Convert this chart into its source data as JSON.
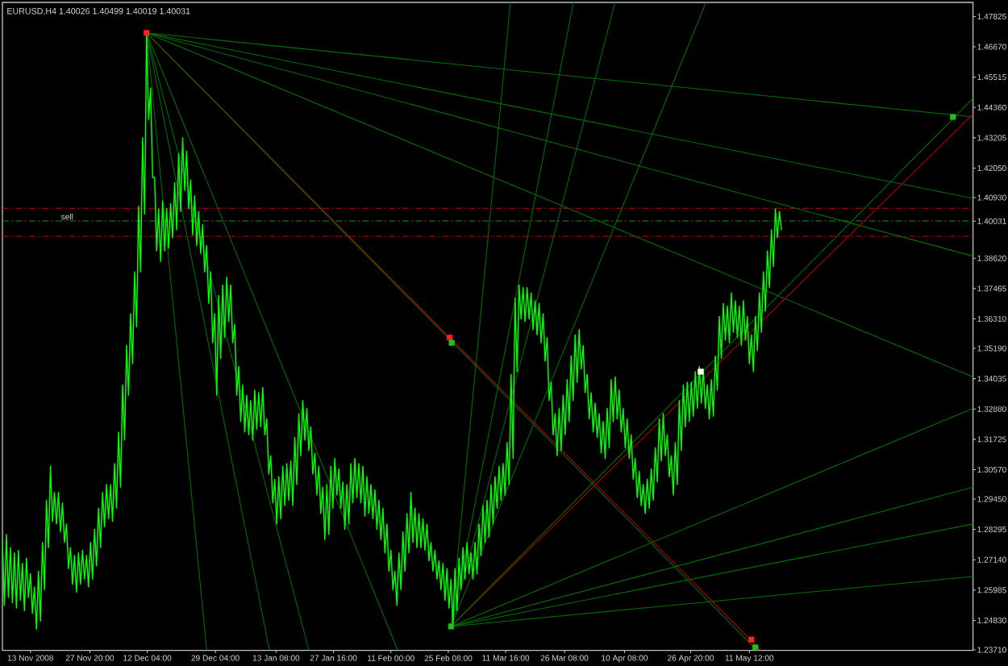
{
  "chart_data": {
    "type": "line",
    "title": "EURUSD,H4  1.40026 1.40499 1.40019 1.40031",
    "xlim": [
      "2008-11-06T00:00",
      "2009-07-06T08:00"
    ],
    "xticks": [
      {
        "value": "2008-11-13T00:00",
        "label": "13 Nov 2008"
      },
      {
        "value": "2008-11-27T20:00",
        "label": "27 Nov 20:00"
      },
      {
        "value": "2008-12-12T04:00",
        "label": "12 Dec 04:00"
      },
      {
        "value": "2008-12-29T04:00",
        "label": "29 Dec 04:00"
      },
      {
        "value": "2009-01-13T08:00",
        "label": "13 Jan 08:00"
      },
      {
        "value": "2009-01-27T16:00",
        "label": "27 Jan 16:00"
      },
      {
        "value": "2009-02-11T00:00",
        "label": "11 Feb 00:00"
      },
      {
        "value": "2009-02-25T08:00",
        "label": "25 Feb 08:00"
      },
      {
        "value": "2009-03-11T16:00",
        "label": "11 Mar 16:00"
      },
      {
        "value": "2009-03-26T08:00",
        "label": "26 Mar 08:00"
      },
      {
        "value": "2009-04-10T08:00",
        "label": "10 Apr 08:00"
      },
      {
        "value": "2009-04-26T20:00",
        "label": "26 Apr 20:00"
      },
      {
        "value": "2009-05-11T12:00",
        "label": "11 May 12:00"
      }
    ],
    "ylim": [
      1.2369,
      1.4836
    ],
    "yticks": [
      1.47825,
      {
        "value": 1.4667,
        "label": "1.46670"
      },
      1.45515,
      {
        "value": 1.4436,
        "label": "1.44360"
      },
      1.43205,
      {
        "value": 1.4205,
        "label": "1.42050"
      },
      {
        "value": 1.4093,
        "label": "1.40930"
      },
      1.40031,
      {
        "value": 1.3862,
        "label": "1.38620"
      },
      1.37465,
      {
        "value": 1.3631,
        "label": "1.36310"
      },
      {
        "value": 1.3519,
        "label": "1.35190"
      },
      1.34035,
      {
        "value": 1.3288,
        "label": "1.32880"
      },
      1.31725,
      {
        "value": 1.3057,
        "label": "1.30570"
      },
      {
        "value": 1.2945,
        "label": "1.29450"
      },
      1.28295,
      {
        "value": 1.2714,
        "label": "1.27140"
      },
      1.25985,
      {
        "value": 1.2483,
        "label": "1.24830"
      },
      {
        "value": 1.2371,
        "label": "1.23710"
      }
    ],
    "ref_lines": [
      {
        "axis": "y",
        "value": 1.4052,
        "color": "#a00000",
        "line_style": "dashed"
      },
      {
        "axis": "y",
        "value": 1.4004,
        "color": "#1e8c1e",
        "line_style": "dashed",
        "label": "sell"
      },
      {
        "axis": "y",
        "value": 1.3945,
        "color": "#a00000",
        "line_style": "dashed"
      }
    ],
    "series": [
      {
        "color": "#007000",
        "x": [
          "2008-12-12T00:00",
          "2009-07-06T08:00"
        ],
        "values": [
          1.472,
          1.44
        ]
      },
      {
        "color": "#007000",
        "x": [
          "2008-12-12T00:00",
          "2009-07-06T08:00"
        ],
        "values": [
          1.472,
          1.409
        ]
      },
      {
        "color": "#007000",
        "x": [
          "2008-12-12T00:00",
          "2009-07-06T08:00"
        ],
        "values": [
          1.472,
          1.387
        ]
      },
      {
        "color": "#007000",
        "x": [
          "2008-12-12T00:00",
          "2009-07-06T08:00"
        ],
        "values": [
          1.472,
          1.341
        ]
      },
      {
        "color": "#b40000",
        "x": [
          "2008-12-12T00:00",
          "2009-05-14T08:00"
        ],
        "values": [
          1.472,
          1.237
        ]
      },
      {
        "color": "#007000",
        "x": [
          "2008-12-12T00:00",
          "2009-05-13T08:00"
        ],
        "values": [
          1.472,
          1.237
        ]
      },
      {
        "color": "#007000",
        "x": [
          "2008-12-12T00:00",
          "2008-12-27T00:00"
        ],
        "values": [
          1.472,
          1.237
        ]
      },
      {
        "color": "#007000",
        "x": [
          "2008-12-12T00:00",
          "2009-01-11T16:00"
        ],
        "values": [
          1.472,
          1.237
        ]
      },
      {
        "color": "#007000",
        "x": [
          "2008-12-12T00:00",
          "2009-01-21T12:00"
        ],
        "values": [
          1.472,
          1.237
        ]
      },
      {
        "color": "#007000",
        "x": [
          "2008-12-12T00:00",
          "2009-02-12T16:00"
        ],
        "values": [
          1.472,
          1.237
        ]
      },
      {
        "color": "#007000",
        "x": [
          "2009-02-26T00:00",
          "2009-07-06T08:00"
        ],
        "values": [
          1.246,
          1.329
        ]
      },
      {
        "color": "#007000",
        "x": [
          "2009-02-26T00:00",
          "2009-07-06T08:00"
        ],
        "values": [
          1.246,
          1.299
        ]
      },
      {
        "color": "#007000",
        "x": [
          "2009-02-26T00:00",
          "2009-07-06T08:00"
        ],
        "values": [
          1.246,
          1.285
        ]
      },
      {
        "color": "#007000",
        "x": [
          "2009-02-26T00:00",
          "2009-07-06T08:00"
        ],
        "values": [
          1.246,
          1.265
        ]
      },
      {
        "color": "#b40000",
        "x": [
          "2009-02-26T00:00",
          "2009-07-06T08:00"
        ],
        "values": [
          1.246,
          1.441
        ]
      },
      {
        "color": "#007000",
        "x": [
          "2009-02-26T00:00",
          "2009-07-06T08:00"
        ],
        "values": [
          1.246,
          1.447
        ]
      },
      {
        "color": "#007000",
        "x": [
          "2009-02-26T00:00",
          "2009-03-12T20:00"
        ],
        "values": [
          1.246,
          1.4836
        ]
      },
      {
        "color": "#007000",
        "x": [
          "2009-02-26T00:00",
          "2009-03-28T14:00"
        ],
        "values": [
          1.246,
          1.4836
        ]
      },
      {
        "color": "#007000",
        "x": [
          "2009-02-26T00:00",
          "2009-04-08T00:00"
        ],
        "values": [
          1.246,
          1.4836
        ]
      },
      {
        "color": "#007000",
        "x": [
          "2009-02-26T00:00",
          "2009-04-30T16:00"
        ],
        "values": [
          1.246,
          1.4836
        ]
      },
      {
        "color": "#00ff00",
        "x": [
          "2008-11-06T00:00",
          "2008-11-06T12:00",
          "2008-11-07T00:00",
          "2008-11-07T12:00",
          "2008-11-08T00:00",
          "2008-11-08T12:00",
          "2008-11-09T00:00",
          "2008-11-09T12:00",
          "2008-11-10T00:00",
          "2008-11-10T12:00",
          "2008-11-11T00:00",
          "2008-11-11T12:00",
          "2008-11-12T00:00",
          "2008-11-12T12:00",
          "2008-11-13T00:00",
          "2008-11-13T12:00",
          "2008-11-14T00:00",
          "2008-11-14T12:00",
          "2008-11-15T00:00",
          "2008-11-15T12:00",
          "2008-11-16T00:00",
          "2008-11-16T12:00",
          "2008-11-17T00:00",
          "2008-11-17T12:00",
          "2008-11-18T00:00",
          "2008-11-18T12:00",
          "2008-11-19T00:00",
          "2008-11-19T12:00",
          "2008-11-20T00:00",
          "2008-11-20T12:00",
          "2008-11-21T00:00",
          "2008-11-21T12:00",
          "2008-11-22T00:00",
          "2008-11-22T12:00",
          "2008-11-23T00:00",
          "2008-11-23T12:00",
          "2008-11-24T00:00",
          "2008-11-24T12:00",
          "2008-11-25T00:00",
          "2008-11-25T12:00",
          "2008-11-26T00:00",
          "2008-11-26T12:00",
          "2008-11-27T00:00",
          "2008-11-27T12:00",
          "2008-11-28T00:00",
          "2008-11-28T12:00",
          "2008-11-29T00:00",
          "2008-11-29T12:00",
          "2008-11-30T00:00",
          "2008-11-30T12:00",
          "2008-12-01T00:00",
          "2008-12-01T12:00",
          "2008-12-02T00:00",
          "2008-12-02T12:00",
          "2008-12-03T00:00",
          "2008-12-03T12:00",
          "2008-12-04T00:00",
          "2008-12-04T12:00",
          "2008-12-05T00:00",
          "2008-12-05T12:00",
          "2008-12-06T00:00",
          "2008-12-06T12:00",
          "2008-12-07T00:00",
          "2008-12-07T12:00",
          "2008-12-08T00:00",
          "2008-12-08T12:00",
          "2008-12-09T00:00",
          "2008-12-09T12:00",
          "2008-12-10T00:00",
          "2008-12-10T12:00",
          "2008-12-11T00:00",
          "2008-12-11T12:00",
          "2008-12-12T00:00",
          "2008-12-12T12:00",
          "2008-12-13T00:00",
          "2008-12-13T12:00",
          "2008-12-14T00:00",
          "2008-12-14T12:00",
          "2008-12-15T00:00",
          "2008-12-15T12:00",
          "2008-12-16T00:00",
          "2008-12-16T12:00",
          "2008-12-17T00:00",
          "2008-12-17T12:00",
          "2008-12-18T00:00",
          "2008-12-18T12:00",
          "2008-12-19T00:00",
          "2008-12-19T12:00",
          "2008-12-20T00:00",
          "2008-12-20T12:00",
          "2008-12-21T00:00",
          "2008-12-21T12:00",
          "2008-12-22T00:00",
          "2008-12-22T12:00",
          "2008-12-23T00:00",
          "2008-12-23T12:00",
          "2008-12-24T00:00",
          "2008-12-24T12:00",
          "2008-12-25T00:00",
          "2008-12-25T12:00",
          "2008-12-26T00:00",
          "2008-12-26T12:00",
          "2008-12-27T00:00",
          "2008-12-27T12:00",
          "2008-12-28T00:00",
          "2008-12-28T12:00",
          "2008-12-29T00:00",
          "2008-12-29T12:00",
          "2008-12-30T00:00",
          "2008-12-30T12:00",
          "2008-12-31T00:00",
          "2008-12-31T12:00",
          "2009-01-01T00:00",
          "2009-01-01T12:00",
          "2009-01-02T00:00",
          "2009-01-02T12:00",
          "2009-01-03T00:00",
          "2009-01-03T12:00",
          "2009-01-04T00:00",
          "2009-01-04T12:00",
          "2009-01-05T00:00",
          "2009-01-05T12:00",
          "2009-01-06T00:00",
          "2009-01-06T12:00",
          "2009-01-07T00:00",
          "2009-01-07T12:00",
          "2009-01-08T00:00",
          "2009-01-08T12:00",
          "2009-01-09T00:00",
          "2009-01-09T12:00",
          "2009-01-10T00:00",
          "2009-01-10T12:00",
          "2009-01-11T00:00",
          "2009-01-11T12:00",
          "2009-01-12T00:00",
          "2009-01-12T12:00",
          "2009-01-13T00:00",
          "2009-01-13T12:00",
          "2009-01-14T00:00",
          "2009-01-14T12:00",
          "2009-01-15T00:00",
          "2009-01-15T12:00",
          "2009-01-16T00:00",
          "2009-01-16T12:00",
          "2009-01-17T00:00",
          "2009-01-17T12:00",
          "2009-01-18T00:00",
          "2009-01-18T12:00",
          "2009-01-19T00:00",
          "2009-01-19T12:00",
          "2009-01-20T00:00",
          "2009-01-20T12:00",
          "2009-01-21T00:00",
          "2009-01-21T12:00",
          "2009-01-22T00:00",
          "2009-01-22T12:00",
          "2009-01-23T00:00",
          "2009-01-23T12:00",
          "2009-01-24T00:00",
          "2009-01-24T12:00",
          "2009-01-25T00:00",
          "2009-01-25T12:00",
          "2009-01-26T00:00",
          "2009-01-26T12:00",
          "2009-01-27T00:00",
          "2009-01-27T12:00",
          "2009-01-28T00:00",
          "2009-01-28T12:00",
          "2009-01-29T00:00",
          "2009-01-29T12:00",
          "2009-01-30T00:00",
          "2009-01-30T12:00",
          "2009-01-31T00:00",
          "2009-01-31T12:00",
          "2009-02-01T00:00",
          "2009-02-01T12:00",
          "2009-02-02T00:00",
          "2009-02-02T12:00",
          "2009-02-03T00:00",
          "2009-02-03T12:00",
          "2009-02-04T00:00",
          "2009-02-04T12:00",
          "2009-02-05T00:00",
          "2009-02-05T12:00",
          "2009-02-06T00:00",
          "2009-02-06T12:00",
          "2009-02-07T00:00",
          "2009-02-07T12:00",
          "2009-02-08T00:00",
          "2009-02-08T12:00",
          "2009-02-09T00:00",
          "2009-02-09T12:00",
          "2009-02-10T00:00",
          "2009-02-10T12:00",
          "2009-02-11T00:00",
          "2009-02-11T12:00",
          "2009-02-12T00:00",
          "2009-02-12T12:00",
          "2009-02-13T00:00",
          "2009-02-13T12:00",
          "2009-02-14T00:00",
          "2009-02-14T12:00",
          "2009-02-15T00:00",
          "2009-02-15T12:00",
          "2009-02-16T00:00",
          "2009-02-16T12:00",
          "2009-02-17T00:00",
          "2009-02-17T12:00",
          "2009-02-18T00:00",
          "2009-02-18T12:00",
          "2009-02-19T00:00",
          "2009-02-19T12:00",
          "2009-02-20T00:00",
          "2009-02-20T12:00",
          "2009-02-21T00:00",
          "2009-02-21T12:00",
          "2009-02-22T00:00",
          "2009-02-22T12:00",
          "2009-02-23T00:00",
          "2009-02-23T12:00",
          "2009-02-24T00:00",
          "2009-02-24T12:00",
          "2009-02-25T00:00",
          "2009-02-25T12:00",
          "2009-02-26T00:00",
          "2009-02-26T12:00",
          "2009-02-27T00:00",
          "2009-02-27T12:00",
          "2009-02-28T00:00",
          "2009-02-28T12:00",
          "2009-03-01T00:00",
          "2009-03-01T12:00",
          "2009-03-02T00:00",
          "2009-03-02T12:00",
          "2009-03-03T00:00",
          "2009-03-03T12:00",
          "2009-03-04T00:00",
          "2009-03-04T12:00",
          "2009-03-05T00:00",
          "2009-03-05T12:00",
          "2009-03-06T00:00",
          "2009-03-06T12:00",
          "2009-03-07T00:00",
          "2009-03-07T12:00",
          "2009-03-08T00:00",
          "2009-03-08T12:00",
          "2009-03-09T00:00",
          "2009-03-09T12:00",
          "2009-03-10T00:00",
          "2009-03-10T12:00",
          "2009-03-11T00:00",
          "2009-03-11T12:00",
          "2009-03-12T00:00",
          "2009-03-12T12:00",
          "2009-03-13T00:00",
          "2009-03-13T12:00",
          "2009-03-14T00:00",
          "2009-03-14T12:00",
          "2009-03-15T00:00",
          "2009-03-15T12:00",
          "2009-03-16T00:00",
          "2009-03-16T12:00",
          "2009-03-17T00:00",
          "2009-03-17T12:00",
          "2009-03-18T00:00",
          "2009-03-18T12:00",
          "2009-03-19T00:00",
          "2009-03-19T12:00",
          "2009-03-20T00:00",
          "2009-03-20T12:00",
          "2009-03-21T00:00",
          "2009-03-21T12:00",
          "2009-03-22T00:00",
          "2009-03-22T12:00",
          "2009-03-23T00:00",
          "2009-03-23T12:00",
          "2009-03-24T00:00",
          "2009-03-24T12:00",
          "2009-03-25T00:00",
          "2009-03-25T12:00",
          "2009-03-26T00:00",
          "2009-03-26T12:00",
          "2009-03-27T00:00",
          "2009-03-27T12:00",
          "2009-03-28T00:00",
          "2009-03-28T12:00",
          "2009-03-29T00:00",
          "2009-03-29T12:00",
          "2009-03-30T00:00",
          "2009-03-30T12:00",
          "2009-03-31T00:00",
          "2009-03-31T12:00",
          "2009-04-01T00:00",
          "2009-04-01T12:00",
          "2009-04-02T00:00",
          "2009-04-02T12:00",
          "2009-04-03T00:00",
          "2009-04-03T12:00",
          "2009-04-04T00:00",
          "2009-04-04T12:00",
          "2009-04-05T00:00",
          "2009-04-05T12:00",
          "2009-04-06T00:00",
          "2009-04-06T12:00",
          "2009-04-07T00:00",
          "2009-04-07T12:00",
          "2009-04-08T00:00",
          "2009-04-08T12:00",
          "2009-04-09T00:00",
          "2009-04-09T12:00",
          "2009-04-10T00:00",
          "2009-04-10T12:00",
          "2009-04-11T00:00",
          "2009-04-11T12:00",
          "2009-04-12T00:00",
          "2009-04-12T12:00",
          "2009-04-13T00:00",
          "2009-04-13T12:00",
          "2009-04-14T00:00",
          "2009-04-14T12:00",
          "2009-04-15T00:00",
          "2009-04-15T12:00",
          "2009-04-16T00:00",
          "2009-04-16T12:00",
          "2009-04-17T00:00",
          "2009-04-17T12:00",
          "2009-04-18T00:00",
          "2009-04-18T12:00",
          "2009-04-19T00:00",
          "2009-04-19T12:00",
          "2009-04-20T00:00",
          "2009-04-20T12:00",
          "2009-04-21T00:00",
          "2009-04-21T12:00",
          "2009-04-22T00:00",
          "2009-04-22T12:00",
          "2009-04-23T00:00",
          "2009-04-23T12:00",
          "2009-04-24T00:00",
          "2009-04-24T12:00",
          "2009-04-25T00:00",
          "2009-04-25T12:00",
          "2009-04-26T00:00",
          "2009-04-26T12:00",
          "2009-04-27T00:00",
          "2009-04-27T12:00",
          "2009-04-28T00:00",
          "2009-04-28T12:00",
          "2009-04-29T00:00",
          "2009-04-29T12:00",
          "2009-04-30T00:00",
          "2009-04-30T12:00",
          "2009-05-01T00:00",
          "2009-05-01T12:00",
          "2009-05-02T00:00",
          "2009-05-02T12:00",
          "2009-05-03T00:00",
          "2009-05-03T12:00",
          "2009-05-04T00:00",
          "2009-05-04T12:00",
          "2009-05-05T00:00",
          "2009-05-05T12:00",
          "2009-05-06T00:00",
          "2009-05-06T12:00",
          "2009-05-07T00:00",
          "2009-05-07T12:00",
          "2009-05-08T00:00",
          "2009-05-08T12:00",
          "2009-05-09T00:00",
          "2009-05-09T12:00",
          "2009-05-10T00:00",
          "2009-05-10T12:00",
          "2009-05-11T00:00",
          "2009-05-11T12:00",
          "2009-05-12T00:00",
          "2009-05-12T12:00",
          "2009-05-13T00:00",
          "2009-05-13T12:00",
          "2009-05-14T00:00",
          "2009-05-14T12:00",
          "2009-05-15T00:00",
          "2009-05-15T12:00",
          "2009-05-16T00:00",
          "2009-05-16T12:00",
          "2009-05-17T00:00",
          "2009-05-17T12:00",
          "2009-05-18T00:00",
          "2009-05-18T12:00",
          "2009-05-19T00:00",
          "2009-05-19T12:00"
        ],
        "values": [
          1.279,
          1.254,
          1.281,
          1.257,
          1.276,
          1.255,
          1.274,
          1.253,
          1.275,
          1.256,
          1.27,
          1.252,
          1.272,
          1.257,
          1.266,
          1.251,
          1.261,
          1.245,
          1.267,
          1.248,
          1.278,
          1.26,
          1.294,
          1.276,
          1.307,
          1.286,
          1.297,
          1.285,
          1.297,
          1.282,
          1.293,
          1.278,
          1.285,
          1.268,
          1.276,
          1.262,
          1.273,
          1.259,
          1.274,
          1.262,
          1.275,
          1.264,
          1.273,
          1.261,
          1.278,
          1.264,
          1.283,
          1.269,
          1.291,
          1.276,
          1.297,
          1.284,
          1.3,
          1.287,
          1.3,
          1.286,
          1.308,
          1.291,
          1.32,
          1.299,
          1.338,
          1.317,
          1.353,
          1.334,
          1.365,
          1.346,
          1.381,
          1.36,
          1.406,
          1.381,
          1.432,
          1.403,
          1.472,
          1.439,
          1.451,
          1.417,
          1.417,
          1.389,
          1.405,
          1.385,
          1.408,
          1.389,
          1.405,
          1.39,
          1.407,
          1.394,
          1.415,
          1.397,
          1.426,
          1.404,
          1.432,
          1.412,
          1.427,
          1.405,
          1.416,
          1.395,
          1.41,
          1.391,
          1.404,
          1.388,
          1.399,
          1.381,
          1.391,
          1.369,
          1.381,
          1.354,
          1.365,
          1.334,
          1.372,
          1.348,
          1.376,
          1.356,
          1.379,
          1.362,
          1.376,
          1.354,
          1.361,
          1.334,
          1.345,
          1.324,
          1.338,
          1.32,
          1.334,
          1.319,
          1.332,
          1.317,
          1.336,
          1.321,
          1.335,
          1.322,
          1.337,
          1.319,
          1.325,
          1.304,
          1.311,
          1.293,
          1.302,
          1.285,
          1.303,
          1.287,
          1.307,
          1.292,
          1.308,
          1.294,
          1.309,
          1.292,
          1.318,
          1.3,
          1.327,
          1.311,
          1.332,
          1.317,
          1.329,
          1.313,
          1.322,
          1.304,
          1.312,
          1.296,
          1.307,
          1.289,
          1.299,
          1.279,
          1.3,
          1.281,
          1.307,
          1.291,
          1.31,
          1.296,
          1.306,
          1.291,
          1.301,
          1.283,
          1.3,
          1.285,
          1.308,
          1.293,
          1.31,
          1.295,
          1.308,
          1.293,
          1.307,
          1.288,
          1.303,
          1.289,
          1.3,
          1.287,
          1.298,
          1.283,
          1.294,
          1.279,
          1.291,
          1.274,
          1.285,
          1.267,
          1.275,
          1.26,
          1.267,
          1.254,
          1.274,
          1.26,
          1.282,
          1.267,
          1.289,
          1.274,
          1.297,
          1.278,
          1.291,
          1.276,
          1.289,
          1.276,
          1.287,
          1.275,
          1.285,
          1.271,
          1.278,
          1.267,
          1.275,
          1.264,
          1.271,
          1.26,
          1.27,
          1.256,
          1.268,
          1.253,
          1.264,
          1.246,
          1.268,
          1.252,
          1.272,
          1.26,
          1.276,
          1.264,
          1.278,
          1.266,
          1.274,
          1.264,
          1.278,
          1.266,
          1.285,
          1.273,
          1.292,
          1.278,
          1.294,
          1.28,
          1.3,
          1.285,
          1.303,
          1.291,
          1.307,
          1.294,
          1.308,
          1.296,
          1.316,
          1.3,
          1.342,
          1.31,
          1.371,
          1.343,
          1.376,
          1.363,
          1.375,
          1.362,
          1.375,
          1.363,
          1.373,
          1.359,
          1.37,
          1.357,
          1.369,
          1.354,
          1.365,
          1.347,
          1.356,
          1.332,
          1.339,
          1.319,
          1.327,
          1.311,
          1.329,
          1.313,
          1.334,
          1.319,
          1.34,
          1.324,
          1.349,
          1.332,
          1.357,
          1.339,
          1.359,
          1.344,
          1.353,
          1.335,
          1.342,
          1.325,
          1.335,
          1.32,
          1.331,
          1.318,
          1.327,
          1.312,
          1.324,
          1.31,
          1.329,
          1.314,
          1.34,
          1.324,
          1.341,
          1.325,
          1.336,
          1.32,
          1.329,
          1.314,
          1.325,
          1.31,
          1.319,
          1.302,
          1.31,
          1.295,
          1.305,
          1.292,
          1.3,
          1.289,
          1.302,
          1.291,
          1.306,
          1.294,
          1.314,
          1.301,
          1.325,
          1.309,
          1.327,
          1.311,
          1.319,
          1.303,
          1.311,
          1.296,
          1.316,
          1.3,
          1.332,
          1.313,
          1.338,
          1.322,
          1.339,
          1.324,
          1.339,
          1.326,
          1.343,
          1.329,
          1.345,
          1.331,
          1.344,
          1.329,
          1.338,
          1.325,
          1.34,
          1.326,
          1.349,
          1.336,
          1.364,
          1.348,
          1.369,
          1.355,
          1.368,
          1.354,
          1.373,
          1.358,
          1.37,
          1.356,
          1.368,
          1.353,
          1.37,
          1.355,
          1.364,
          1.346,
          1.357,
          1.343,
          1.364,
          1.351,
          1.373,
          1.358,
          1.381,
          1.366,
          1.389,
          1.375,
          1.397,
          1.383,
          1.405,
          1.394,
          1.404,
          1.397
        ]
      },
      {
        "type": "scatter",
        "marker": "square",
        "color": "#ff2020",
        "x": [
          "2008-12-12T00:00",
          "2009-02-25T16:00",
          "2009-05-12T00:00"
        ],
        "values": [
          1.472,
          1.356,
          1.241
        ]
      },
      {
        "type": "scatter",
        "marker": "square",
        "color": "#20c020",
        "x": [
          "2009-02-26T00:00",
          "2009-02-26T04:00",
          "2009-05-13T00:00",
          "2009-07-01T08:00"
        ],
        "values": [
          1.246,
          1.354,
          1.238,
          1.44
        ]
      },
      {
        "type": "scatter",
        "marker": "square",
        "color": "#ffffff",
        "x": [
          "2009-04-29T08:00"
        ],
        "values": [
          1.343
        ]
      }
    ]
  }
}
